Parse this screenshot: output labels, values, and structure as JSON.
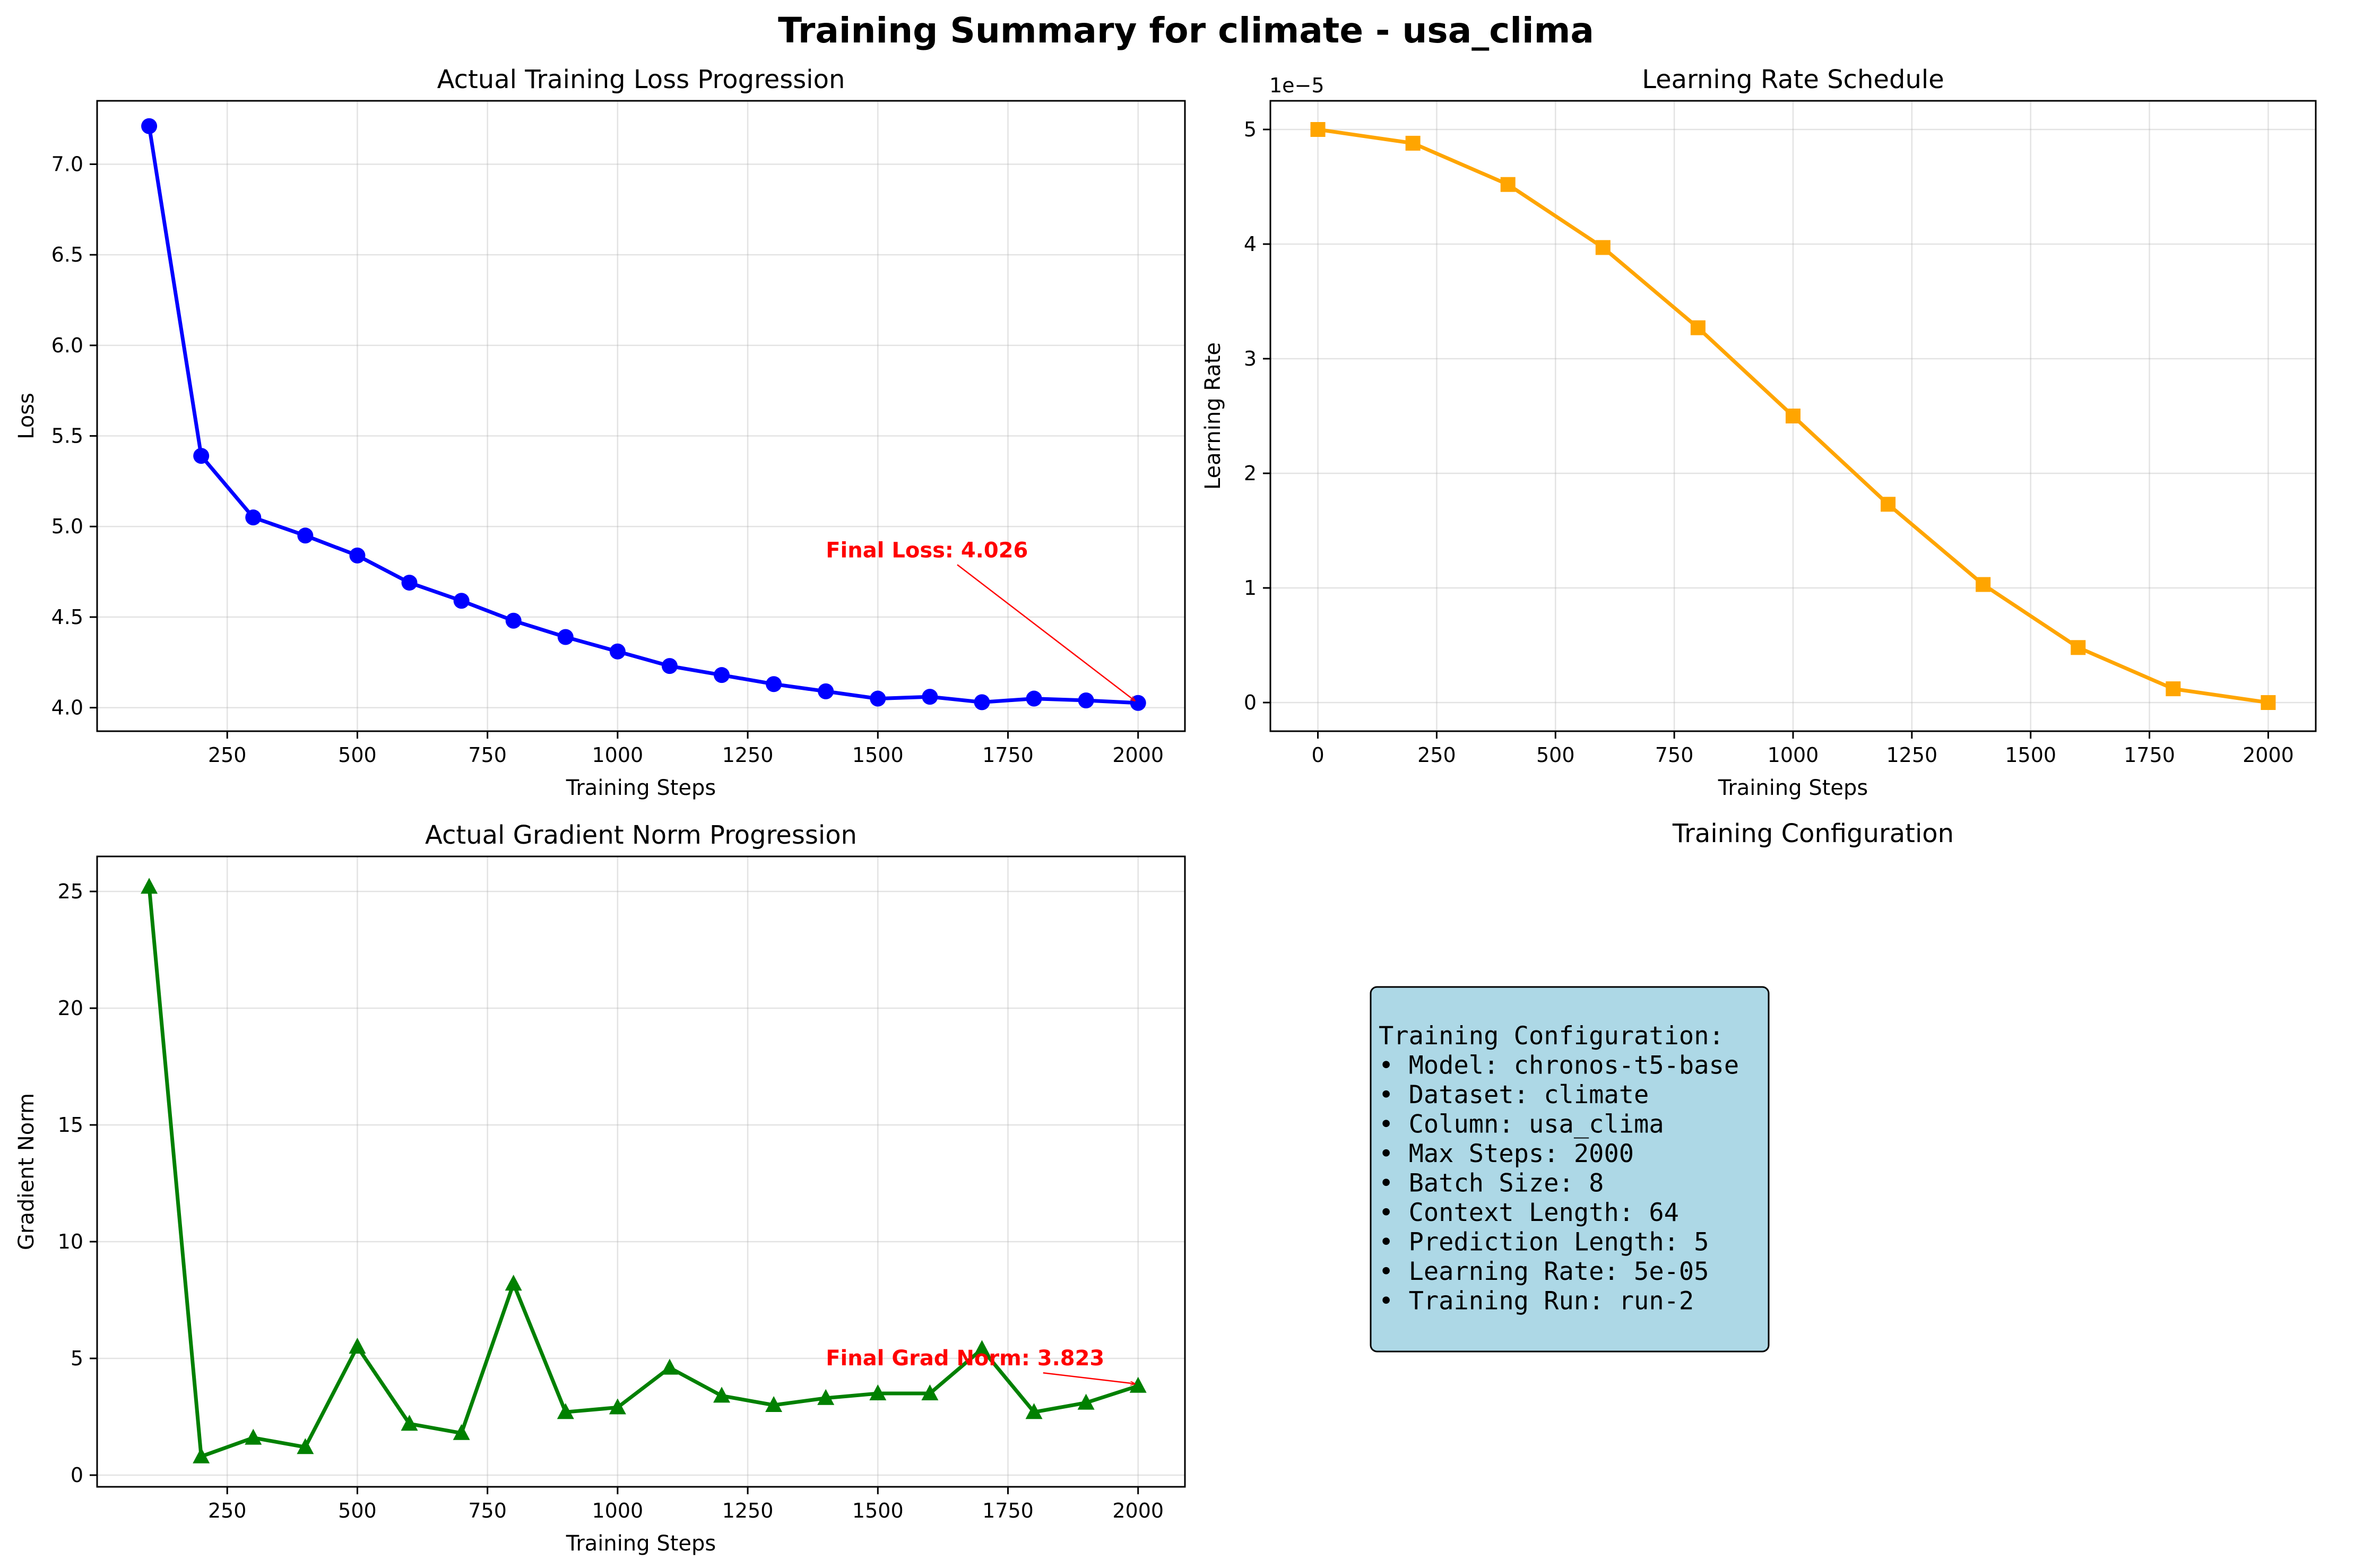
{
  "figure": {
    "suptitle": "Training Summary for climate - usa_clima"
  },
  "chart_data": [
    {
      "type": "line",
      "title": "Actual Training Loss Progression",
      "xlabel": "Training Steps",
      "ylabel": "Loss",
      "xlim": [
        0,
        2090
      ],
      "ylim": [
        3.87,
        7.35
      ],
      "xticks": [
        250,
        500,
        750,
        1000,
        1250,
        1500,
        1750,
        2000
      ],
      "yticks": [
        4.0,
        4.5,
        5.0,
        5.5,
        6.0,
        6.5,
        7.0
      ],
      "ytick_decimals": 1,
      "grid": true,
      "color": "#0000ff",
      "marker": "circle",
      "x": [
        100,
        200,
        300,
        400,
        500,
        600,
        700,
        800,
        900,
        1000,
        1100,
        1200,
        1300,
        1400,
        1500,
        1600,
        1700,
        1800,
        1900,
        2000
      ],
      "y": [
        7.21,
        5.39,
        5.05,
        4.95,
        4.84,
        4.69,
        4.59,
        4.48,
        4.39,
        4.31,
        4.23,
        4.18,
        4.13,
        4.09,
        4.05,
        4.06,
        4.03,
        4.05,
        4.04,
        4.026
      ],
      "annotation": {
        "text": "Final Loss: 4.026",
        "text_x": 1400,
        "text_y": 4.83,
        "target_x": 2000,
        "target_y": 4.026
      }
    },
    {
      "type": "line",
      "title": "Learning Rate Schedule",
      "xlabel": "Training Steps",
      "ylabel": "Learning Rate",
      "offset_text": "1e−5",
      "xlim": [
        -100,
        2100
      ],
      "ylim": [
        -0.25,
        5.25
      ],
      "xticks": [
        0,
        250,
        500,
        750,
        1000,
        1250,
        1500,
        1750,
        2000
      ],
      "yticks": [
        0,
        1,
        2,
        3,
        4,
        5
      ],
      "ytick_decimals": 0,
      "grid": true,
      "color": "#ffa500",
      "marker": "square",
      "x": [
        0,
        200,
        400,
        600,
        800,
        1000,
        1200,
        1400,
        1600,
        1800,
        2000
      ],
      "y": [
        5.0,
        4.88,
        4.52,
        3.97,
        3.27,
        2.5,
        1.73,
        1.03,
        0.48,
        0.12,
        0.0
      ]
    },
    {
      "type": "line",
      "title": "Actual Gradient Norm Progression",
      "xlabel": "Training Steps",
      "ylabel": "Gradient Norm",
      "xlim": [
        0,
        2090
      ],
      "ylim": [
        -0.5,
        26.5
      ],
      "xticks": [
        250,
        500,
        750,
        1000,
        1250,
        1500,
        1750,
        2000
      ],
      "yticks": [
        0,
        5,
        10,
        15,
        20,
        25
      ],
      "ytick_decimals": 0,
      "grid": true,
      "color": "#008000",
      "marker": "triangle",
      "x": [
        100,
        200,
        300,
        400,
        500,
        600,
        700,
        800,
        900,
        1000,
        1100,
        1200,
        1300,
        1400,
        1500,
        1600,
        1700,
        1800,
        1900,
        2000
      ],
      "y": [
        25.2,
        0.8,
        1.6,
        1.2,
        5.5,
        2.2,
        1.8,
        8.2,
        2.7,
        2.9,
        4.6,
        3.4,
        3.0,
        3.3,
        3.5,
        3.5,
        5.4,
        2.7,
        3.1,
        3.823
      ],
      "annotation": {
        "text": "Final Grad Norm: 3.823",
        "text_x": 1400,
        "text_y": 4.7,
        "target_x": 2000,
        "target_y": 3.823
      }
    }
  ],
  "config_panel": {
    "title": "Training Configuration",
    "box_color": "#add8e6",
    "lines": [
      "Training Configuration:",
      "• Model: chronos-t5-base",
      "• Dataset: climate",
      "• Column: usa_clima",
      "• Max Steps: 2000",
      "• Batch Size: 8",
      "• Context Length: 64",
      "• Prediction Length: 5",
      "• Learning Rate: 5e-05",
      "• Training Run: run-2"
    ]
  }
}
